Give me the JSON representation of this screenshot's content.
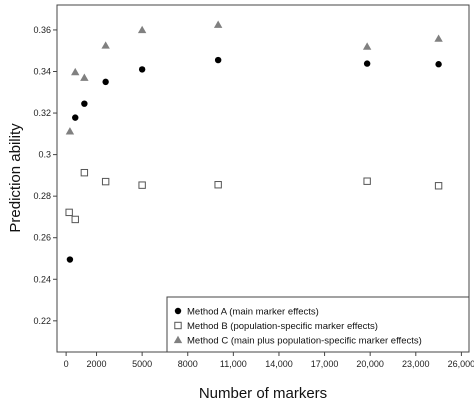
{
  "chart_data": {
    "type": "scatter",
    "xlabel": "Number of markers",
    "ylabel": "Prediction ability",
    "xlim": [
      -600,
      26500
    ],
    "ylim": [
      0.205,
      0.372
    ],
    "xticks": [
      0,
      2000,
      5000,
      8000,
      11000,
      14000,
      17000,
      20000,
      23000,
      26000
    ],
    "xtick_labels": [
      "0",
      "2000",
      "5000",
      "8000",
      "11,000",
      "14,000",
      "17,000",
      "20,000",
      "23,000",
      "26,000"
    ],
    "yticks": [
      0.22,
      0.24,
      0.26,
      0.28,
      0.3,
      0.32,
      0.34,
      0.36
    ],
    "ytick_labels": [
      "0.22",
      "0.24",
      "0.26",
      "0.28",
      "0.3",
      "0.32",
      "0.34",
      "0.36"
    ],
    "grid": false,
    "legend_position": "bottom-right",
    "series": [
      {
        "name": "Method A (main marker effects)",
        "marker": "filled-circle",
        "color": "#000000",
        "points": [
          [
            250,
            0.2495
          ],
          [
            600,
            0.3178
          ],
          [
            1200,
            0.3245
          ],
          [
            2600,
            0.335
          ],
          [
            5000,
            0.341
          ],
          [
            10000,
            0.3455
          ],
          [
            19800,
            0.3438
          ],
          [
            24500,
            0.3435
          ]
        ]
      },
      {
        "name": "Method B (population-specific marker effects)",
        "marker": "open-square",
        "color": "#555555",
        "points": [
          [
            200,
            0.2722
          ],
          [
            600,
            0.2688
          ],
          [
            1200,
            0.2913
          ],
          [
            2600,
            0.287
          ],
          [
            5000,
            0.2853
          ],
          [
            10000,
            0.2855
          ],
          [
            19800,
            0.2872
          ],
          [
            24500,
            0.285
          ]
        ]
      },
      {
        "name": "Method C (main plus population-specific marker effects)",
        "marker": "filled-triangle",
        "color": "#808080",
        "points": [
          [
            250,
            0.3112
          ],
          [
            600,
            0.3397
          ],
          [
            1200,
            0.337
          ],
          [
            2600,
            0.3525
          ],
          [
            5000,
            0.36
          ],
          [
            10000,
            0.3625
          ],
          [
            19800,
            0.352
          ],
          [
            24500,
            0.3558
          ]
        ]
      }
    ]
  }
}
